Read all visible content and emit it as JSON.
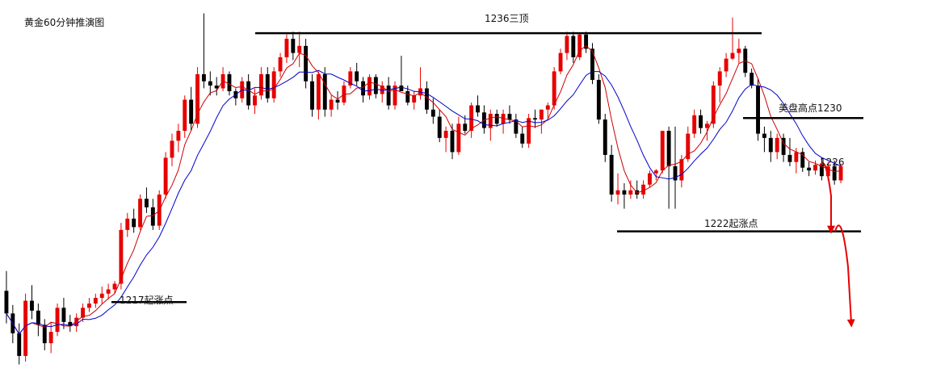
{
  "chart_data": {
    "type": "candlestick",
    "title": "黄金60分钟推演图",
    "xlabel": "",
    "ylabel": "",
    "ylim": [
      1212,
      1238
    ],
    "grid": false,
    "colors": {
      "up": "#e60000",
      "down": "#000000",
      "ma_fast": "#cc0000",
      "ma_slow": "#0000cc",
      "projection": "#e60000"
    },
    "ohlc": [
      [
        1217.8,
        1219.2,
        1215.5,
        1216.2
      ],
      [
        1216.2,
        1216.8,
        1214.1,
        1214.8
      ],
      [
        1214.8,
        1215.5,
        1212.6,
        1213.2
      ],
      [
        1213.2,
        1217.6,
        1212.8,
        1217.1
      ],
      [
        1217.1,
        1218.2,
        1215.8,
        1216.4
      ],
      [
        1216.4,
        1216.9,
        1214.6,
        1215.4
      ],
      [
        1215.4,
        1215.8,
        1213.6,
        1214.1
      ],
      [
        1214.1,
        1215.6,
        1213.4,
        1214.9
      ],
      [
        1214.9,
        1216.9,
        1214.6,
        1216.6
      ],
      [
        1216.6,
        1217.3,
        1215.1,
        1215.6
      ],
      [
        1215.6,
        1216.1,
        1214.9,
        1215.3
      ],
      [
        1215.3,
        1216.2,
        1214.9,
        1215.9
      ],
      [
        1215.9,
        1216.9,
        1215.6,
        1216.6
      ],
      [
        1216.6,
        1217.3,
        1216.3,
        1216.9
      ],
      [
        1216.9,
        1217.6,
        1216.6,
        1217.3
      ],
      [
        1217.3,
        1218.1,
        1216.9,
        1217.6
      ],
      [
        1217.6,
        1218.3,
        1217.2,
        1217.9
      ],
      [
        1217.9,
        1218.5,
        1217.6,
        1218.3
      ],
      [
        1218.3,
        1222.6,
        1217.9,
        1222.1
      ],
      [
        1222.1,
        1223.3,
        1221.6,
        1222.9
      ],
      [
        1222.9,
        1223.6,
        1221.9,
        1222.3
      ],
      [
        1222.3,
        1224.6,
        1222.1,
        1224.3
      ],
      [
        1224.3,
        1225.1,
        1223.3,
        1223.7
      ],
      [
        1223.7,
        1224.3,
        1222.1,
        1222.4
      ],
      [
        1222.4,
        1224.9,
        1222.1,
        1224.6
      ],
      [
        1224.6,
        1227.6,
        1224.3,
        1227.2
      ],
      [
        1227.2,
        1228.9,
        1226.6,
        1228.4
      ],
      [
        1228.4,
        1229.6,
        1227.6,
        1229.1
      ],
      [
        1229.1,
        1231.6,
        1228.6,
        1231.3
      ],
      [
        1231.3,
        1232.2,
        1229.1,
        1229.6
      ],
      [
        1229.6,
        1233.6,
        1229.3,
        1233.1
      ],
      [
        1233.1,
        1237.4,
        1232.1,
        1232.6
      ],
      [
        1232.6,
        1233.3,
        1231.6,
        1232.3
      ],
      [
        1232.3,
        1232.9,
        1231.6,
        1232.1
      ],
      [
        1232.1,
        1233.6,
        1231.9,
        1233.1
      ],
      [
        1233.1,
        1233.3,
        1231.6,
        1231.9
      ],
      [
        1231.9,
        1232.1,
        1230.9,
        1231.4
      ],
      [
        1231.4,
        1232.9,
        1231.1,
        1232.6
      ],
      [
        1232.6,
        1233.1,
        1230.6,
        1230.9
      ],
      [
        1230.9,
        1232.1,
        1230.3,
        1231.6
      ],
      [
        1231.6,
        1233.6,
        1231.3,
        1233.1
      ],
      [
        1233.1,
        1233.6,
        1231.1,
        1231.4
      ],
      [
        1231.4,
        1233.6,
        1231.1,
        1233.3
      ],
      [
        1233.3,
        1234.6,
        1232.9,
        1234.3
      ],
      [
        1234.3,
        1235.9,
        1233.9,
        1235.6
      ],
      [
        1235.6,
        1236.1,
        1234.1,
        1234.6
      ],
      [
        1234.6,
        1236.1,
        1233.6,
        1235.1
      ],
      [
        1235.1,
        1235.6,
        1232.1,
        1232.6
      ],
      [
        1232.6,
        1233.1,
        1230.1,
        1230.6
      ],
      [
        1230.6,
        1233.3,
        1229.9,
        1233.1
      ],
      [
        1233.1,
        1233.6,
        1230.1,
        1230.6
      ],
      [
        1230.6,
        1231.6,
        1230.1,
        1231.3
      ],
      [
        1231.3,
        1231.9,
        1230.6,
        1231.1
      ],
      [
        1231.1,
        1232.6,
        1230.9,
        1232.3
      ],
      [
        1232.3,
        1233.6,
        1232.1,
        1233.3
      ],
      [
        1233.3,
        1233.9,
        1232.3,
        1232.6
      ],
      [
        1232.6,
        1232.9,
        1231.1,
        1231.6
      ],
      [
        1231.6,
        1233.1,
        1231.3,
        1232.9
      ],
      [
        1232.9,
        1233.1,
        1231.4,
        1231.7
      ],
      [
        1231.7,
        1232.6,
        1231.1,
        1232.3
      ],
      [
        1232.3,
        1232.9,
        1230.6,
        1230.9
      ],
      [
        1230.9,
        1232.6,
        1230.6,
        1232.3
      ],
      [
        1232.3,
        1234.4,
        1231.9,
        1231.9
      ],
      [
        1231.9,
        1232.3,
        1230.9,
        1231.1
      ],
      [
        1231.1,
        1231.9,
        1230.6,
        1231.6
      ],
      [
        1231.6,
        1233.6,
        1231.3,
        1232.1
      ],
      [
        1232.1,
        1232.6,
        1230.3,
        1230.6
      ],
      [
        1230.6,
        1231.4,
        1229.6,
        1230.1
      ],
      [
        1230.1,
        1230.6,
        1228.3,
        1228.6
      ],
      [
        1228.6,
        1229.4,
        1227.6,
        1229.1
      ],
      [
        1229.1,
        1229.6,
        1227.1,
        1227.6
      ],
      [
        1227.6,
        1230.1,
        1227.4,
        1229.6
      ],
      [
        1229.6,
        1230.2,
        1228.9,
        1229.1
      ],
      [
        1229.1,
        1231.1,
        1228.6,
        1230.9
      ],
      [
        1230.9,
        1231.6,
        1230.1,
        1230.4
      ],
      [
        1230.4,
        1230.9,
        1228.9,
        1229.3
      ],
      [
        1229.3,
        1230.6,
        1228.4,
        1230.3
      ],
      [
        1230.3,
        1230.6,
        1229.4,
        1229.6
      ],
      [
        1229.6,
        1230.6,
        1228.9,
        1230.3
      ],
      [
        1230.3,
        1230.9,
        1229.6,
        1229.9
      ],
      [
        1229.9,
        1230.3,
        1228.6,
        1228.9
      ],
      [
        1228.9,
        1229.4,
        1227.9,
        1228.2
      ],
      [
        1228.2,
        1230.3,
        1227.9,
        1230.0
      ],
      [
        1230.0,
        1230.6,
        1229.3,
        1229.9
      ],
      [
        1229.9,
        1230.6,
        1228.9,
        1230.6
      ],
      [
        1230.6,
        1231.1,
        1230.0,
        1230.9
      ],
      [
        1230.9,
        1233.6,
        1230.6,
        1233.3
      ],
      [
        1233.3,
        1234.9,
        1233.1,
        1234.6
      ],
      [
        1234.6,
        1236.1,
        1234.1,
        1235.8
      ],
      [
        1235.8,
        1236.1,
        1233.9,
        1234.3
      ],
      [
        1234.3,
        1236.0,
        1234.1,
        1235.9
      ],
      [
        1235.9,
        1236.1,
        1234.6,
        1234.9
      ],
      [
        1234.9,
        1235.3,
        1232.4,
        1232.7
      ],
      [
        1232.7,
        1233.1,
        1229.6,
        1229.9
      ],
      [
        1229.9,
        1230.3,
        1226.9,
        1227.4
      ],
      [
        1227.4,
        1228.1,
        1224.1,
        1224.6
      ],
      [
        1224.6,
        1226.1,
        1223.9,
        1224.9
      ],
      [
        1224.9,
        1225.4,
        1223.6,
        1224.6
      ],
      [
        1224.6,
        1225.6,
        1224.3,
        1224.9
      ],
      [
        1224.9,
        1225.6,
        1224.3,
        1224.6
      ],
      [
        1224.6,
        1225.6,
        1224.3,
        1225.3
      ],
      [
        1225.3,
        1226.3,
        1225.1,
        1226.1
      ],
      [
        1226.1,
        1226.4,
        1225.6,
        1226.3
      ],
      [
        1226.3,
        1229.1,
        1226.1,
        1229.1
      ],
      [
        1229.1,
        1229.4,
        1223.6,
        1226.6
      ],
      [
        1226.6,
        1229.4,
        1223.6,
        1225.6
      ],
      [
        1225.6,
        1227.4,
        1225.1,
        1227.1
      ],
      [
        1227.1,
        1229.4,
        1226.9,
        1228.9
      ],
      [
        1228.9,
        1230.6,
        1228.6,
        1230.2
      ],
      [
        1230.2,
        1230.6,
        1228.9,
        1229.3
      ],
      [
        1229.3,
        1229.8,
        1228.4,
        1229.6
      ],
      [
        1229.6,
        1232.6,
        1229.3,
        1232.3
      ],
      [
        1232.3,
        1233.6,
        1231.1,
        1233.3
      ],
      [
        1233.3,
        1234.6,
        1232.9,
        1234.2
      ],
      [
        1234.2,
        1237.1,
        1234.1,
        1234.6
      ],
      [
        1234.6,
        1235.6,
        1233.9,
        1234.9
      ],
      [
        1234.9,
        1235.1,
        1232.9,
        1233.2
      ],
      [
        1233.2,
        1233.5,
        1232.1,
        1232.3
      ],
      [
        1232.3,
        1232.8,
        1228.4,
        1228.9
      ],
      [
        1228.9,
        1229.4,
        1227.6,
        1228.6
      ],
      [
        1228.6,
        1229.1,
        1226.9,
        1227.6
      ],
      [
        1227.6,
        1228.9,
        1227.1,
        1228.6
      ],
      [
        1228.6,
        1228.9,
        1226.9,
        1227.4
      ],
      [
        1227.4,
        1228.6,
        1226.6,
        1226.9
      ],
      [
        1226.9,
        1227.9,
        1226.1,
        1227.6
      ],
      [
        1227.6,
        1227.9,
        1226.2,
        1226.5
      ],
      [
        1226.5,
        1226.9,
        1225.9,
        1226.3
      ],
      [
        1226.3,
        1227.0,
        1226.0,
        1226.7
      ],
      [
        1226.7,
        1227.2,
        1225.6,
        1225.9
      ],
      [
        1225.9,
        1226.9,
        1225.6,
        1226.6
      ],
      [
        1226.6,
        1227.0,
        1225.3,
        1225.6
      ],
      [
        1225.6,
        1226.8,
        1225.4,
        1226.6
      ]
    ],
    "ma_fast_name": "",
    "ma_slow_name": "",
    "annotations": {
      "triple_top": {
        "label": "1236三顶",
        "value": 1236.0
      },
      "us_high": {
        "label": "美盘高点1230",
        "value": 1230.0
      },
      "current": {
        "label": "1226",
        "value": 1226.0
      },
      "rise_1222": {
        "label": "1222起涨点",
        "value": 1222.0
      },
      "rise_1217": {
        "label": "1217起涨点",
        "value": 1217.0
      }
    },
    "projection": [
      1226.6,
      1227.0,
      1224.5,
      1222.0,
      1222.5,
      1219.5,
      1215.5
    ]
  }
}
